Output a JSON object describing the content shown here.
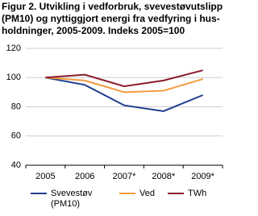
{
  "chart_data": {
    "type": "line",
    "title": [
      "Figur 2. Utvikling i vedforbruk, svevestøvutslipp",
      "(PM10) og nyttiggjort energi fra vedfyring i hus-",
      "holdninger, 2005-2009. Indeks 2005=100"
    ],
    "categories": [
      "2005",
      "2006",
      "2007*",
      "2008*",
      "2009*"
    ],
    "series": [
      {
        "name": "Svevestøv (PM10)",
        "color": "#1f3f8f",
        "values": [
          100,
          95,
          81,
          77,
          88
        ]
      },
      {
        "name": "Ved",
        "color": "#f39a3b",
        "values": [
          100,
          98,
          90,
          91,
          99
        ]
      },
      {
        "name": "TWh",
        "color": "#8c1c2c",
        "values": [
          100,
          102,
          94,
          98,
          105
        ]
      }
    ],
    "ylim": [
      40,
      120
    ],
    "yticks": [
      40,
      60,
      80,
      100,
      120
    ],
    "grid": true
  }
}
